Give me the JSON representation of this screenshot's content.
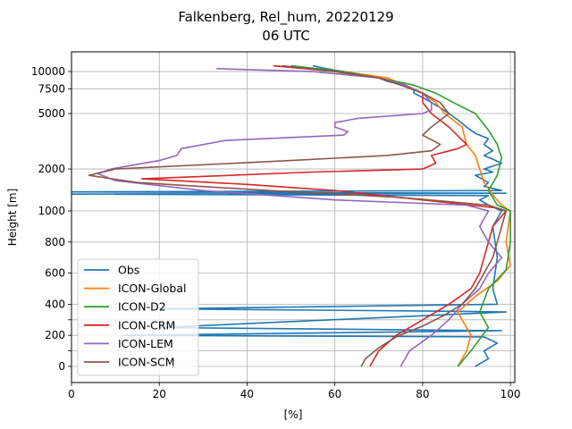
{
  "chart_data": {
    "type": "line",
    "title": "Falkenberg, Rel_hum, 20220129",
    "subtitle": "06 UTC",
    "xlabel": "[%]",
    "ylabel": "Height [m]",
    "xlim": [
      0,
      101
    ],
    "y_scale": "piecewise: linear 0-1000 m, log above 1000 m",
    "ylim": [
      -100,
      13000
    ],
    "x_ticks": [
      0,
      20,
      40,
      60,
      80,
      100
    ],
    "y_ticks": [
      {
        "value": 0,
        "label": "0"
      },
      {
        "value": 100,
        "label": ""
      },
      {
        "value": 200,
        "label": "200"
      },
      {
        "value": 300,
        "label": ""
      },
      {
        "value": 400,
        "label": "400"
      },
      {
        "value": 600,
        "label": "600"
      },
      {
        "value": 800,
        "label": "800"
      },
      {
        "value": 1000,
        "label": "1000"
      },
      {
        "value": 2000,
        "label": "2000"
      },
      {
        "value": 5000,
        "label": "5000"
      },
      {
        "value": 7500,
        "label": "7500"
      },
      {
        "value": 10000,
        "label": "10000"
      }
    ],
    "grid": true,
    "legend_position": "lower-left",
    "series": [
      {
        "name": "Obs",
        "color": "#1f77b4",
        "points": [
          [
            92,
            0
          ],
          [
            95,
            50
          ],
          [
            94,
            100
          ],
          [
            97,
            150
          ],
          [
            94,
            190
          ],
          [
            12,
            200
          ],
          [
            98,
            230
          ],
          [
            20,
            250
          ],
          [
            99,
            350
          ],
          [
            85,
            355
          ],
          [
            20,
            370
          ],
          [
            97,
            400
          ],
          [
            96,
            500
          ],
          [
            97,
            700
          ],
          [
            96,
            900
          ],
          [
            98,
            1000
          ],
          [
            95,
            1100
          ],
          [
            93,
            1200
          ],
          [
            95,
            1290
          ],
          [
            0,
            1320
          ],
          [
            99,
            1340
          ],
          [
            0,
            1370
          ],
          [
            98,
            1400
          ],
          [
            94,
            1500
          ],
          [
            95,
            1600
          ],
          [
            92,
            1800
          ],
          [
            96,
            1900
          ],
          [
            94,
            2000
          ],
          [
            98,
            2200
          ],
          [
            94,
            2500
          ],
          [
            96,
            2700
          ],
          [
            94,
            3000
          ],
          [
            95,
            3300
          ],
          [
            92,
            3600
          ],
          [
            90,
            4000
          ],
          [
            88,
            4500
          ],
          [
            86,
            5000
          ],
          [
            84,
            5500
          ],
          [
            82,
            6000
          ],
          [
            80,
            6500
          ],
          [
            78,
            7000
          ],
          [
            78,
            7500
          ],
          [
            76,
            8000
          ],
          [
            72,
            8500
          ],
          [
            70,
            9000
          ],
          [
            66,
            9500
          ],
          [
            62,
            10000
          ],
          [
            58,
            10500
          ],
          [
            55,
            11000
          ]
        ]
      },
      {
        "name": "ICON-Global",
        "color": "#ff7f0e",
        "points": [
          [
            88,
            0
          ],
          [
            90,
            100
          ],
          [
            91,
            200
          ],
          [
            88,
            350
          ],
          [
            92,
            450
          ],
          [
            97,
            550
          ],
          [
            100,
            650
          ],
          [
            99,
            800
          ],
          [
            100,
            1000
          ],
          [
            98,
            1100
          ],
          [
            96,
            1300
          ],
          [
            94,
            1600
          ],
          [
            93,
            2000
          ],
          [
            92,
            2500
          ],
          [
            90,
            3000
          ],
          [
            89,
            4000
          ],
          [
            85,
            5000
          ],
          [
            83,
            6000
          ],
          [
            80,
            7000
          ],
          [
            76,
            8000
          ],
          [
            72,
            9000
          ],
          [
            62,
            10000
          ],
          [
            46,
            11000
          ]
        ]
      },
      {
        "name": "ICON-D2",
        "color": "#2ca02c",
        "points": [
          [
            88,
            0
          ],
          [
            91,
            100
          ],
          [
            95,
            250
          ],
          [
            93,
            350
          ],
          [
            95,
            500
          ],
          [
            99,
            620
          ],
          [
            100,
            800
          ],
          [
            100,
            1000
          ],
          [
            97,
            1100
          ],
          [
            95,
            1400
          ],
          [
            97,
            1800
          ],
          [
            98,
            2400
          ],
          [
            97,
            3000
          ],
          [
            95,
            3800
          ],
          [
            92,
            5000
          ],
          [
            87,
            6000
          ],
          [
            83,
            7000
          ],
          [
            78,
            8000
          ],
          [
            70,
            9000
          ],
          [
            62,
            10000
          ],
          [
            50,
            11000
          ]
        ]
      },
      {
        "name": "ICON-CRM",
        "color": "#d62728",
        "points": [
          [
            68,
            0
          ],
          [
            70,
            100
          ],
          [
            74,
            200
          ],
          [
            80,
            300
          ],
          [
            86,
            400
          ],
          [
            91,
            500
          ],
          [
            93,
            600
          ],
          [
            94,
            700
          ],
          [
            95,
            800
          ],
          [
            96,
            900
          ],
          [
            99,
            1000
          ],
          [
            97,
            1050
          ],
          [
            80,
            1200
          ],
          [
            60,
            1400
          ],
          [
            40,
            1550
          ],
          [
            16,
            1700
          ],
          [
            55,
            1900
          ],
          [
            80,
            2000
          ],
          [
            83,
            2200
          ],
          [
            82,
            2500
          ],
          [
            88,
            2800
          ],
          [
            90,
            3000
          ],
          [
            86,
            4000
          ],
          [
            82,
            5000
          ],
          [
            80,
            6000
          ],
          [
            80,
            7000
          ],
          [
            76,
            8000
          ],
          [
            70,
            9000
          ],
          [
            60,
            10000
          ],
          [
            46,
            11000
          ]
        ]
      },
      {
        "name": "ICON-LEM",
        "color": "#9467bd",
        "points": [
          [
            75,
            0
          ],
          [
            77,
            100
          ],
          [
            82,
            200
          ],
          [
            86,
            300
          ],
          [
            89,
            400
          ],
          [
            93,
            500
          ],
          [
            95,
            600
          ],
          [
            98,
            700
          ],
          [
            95,
            800
          ],
          [
            93,
            900
          ],
          [
            95,
            1000
          ],
          [
            90,
            1100
          ],
          [
            60,
            1200
          ],
          [
            30,
            1400
          ],
          [
            10,
            1650
          ],
          [
            6,
            1850
          ],
          [
            9,
            2000
          ],
          [
            20,
            2300
          ],
          [
            24,
            2500
          ],
          [
            25,
            2800
          ],
          [
            35,
            3200
          ],
          [
            62,
            3500
          ],
          [
            63,
            3700
          ],
          [
            60,
            4000
          ],
          [
            60,
            4300
          ],
          [
            65,
            4600
          ],
          [
            80,
            5000
          ],
          [
            82,
            5300
          ],
          [
            82,
            6000
          ],
          [
            80,
            7000
          ],
          [
            76,
            8000
          ],
          [
            70,
            9000
          ],
          [
            55,
            10000
          ],
          [
            33,
            10500
          ]
        ]
      },
      {
        "name": "ICON-SCM",
        "color": "#8c564b",
        "points": [
          [
            66,
            0
          ],
          [
            67,
            50
          ],
          [
            70,
            120
          ],
          [
            74,
            190
          ],
          [
            80,
            260
          ],
          [
            85,
            330
          ],
          [
            89,
            400
          ],
          [
            92,
            500
          ],
          [
            94,
            600
          ],
          [
            96,
            700
          ],
          [
            97,
            800
          ],
          [
            98,
            900
          ],
          [
            99,
            1000
          ],
          [
            95,
            1100
          ],
          [
            75,
            1250
          ],
          [
            45,
            1400
          ],
          [
            15,
            1600
          ],
          [
            4,
            1800
          ],
          [
            10,
            2000
          ],
          [
            50,
            2300
          ],
          [
            72,
            2500
          ],
          [
            82,
            2700
          ],
          [
            84,
            3000
          ],
          [
            80,
            3500
          ],
          [
            82,
            4000
          ],
          [
            86,
            5000
          ],
          [
            84,
            6000
          ],
          [
            80,
            7000
          ],
          [
            75,
            8000
          ],
          [
            70,
            9000
          ],
          [
            60,
            10000
          ],
          [
            48,
            11000
          ]
        ]
      }
    ]
  }
}
